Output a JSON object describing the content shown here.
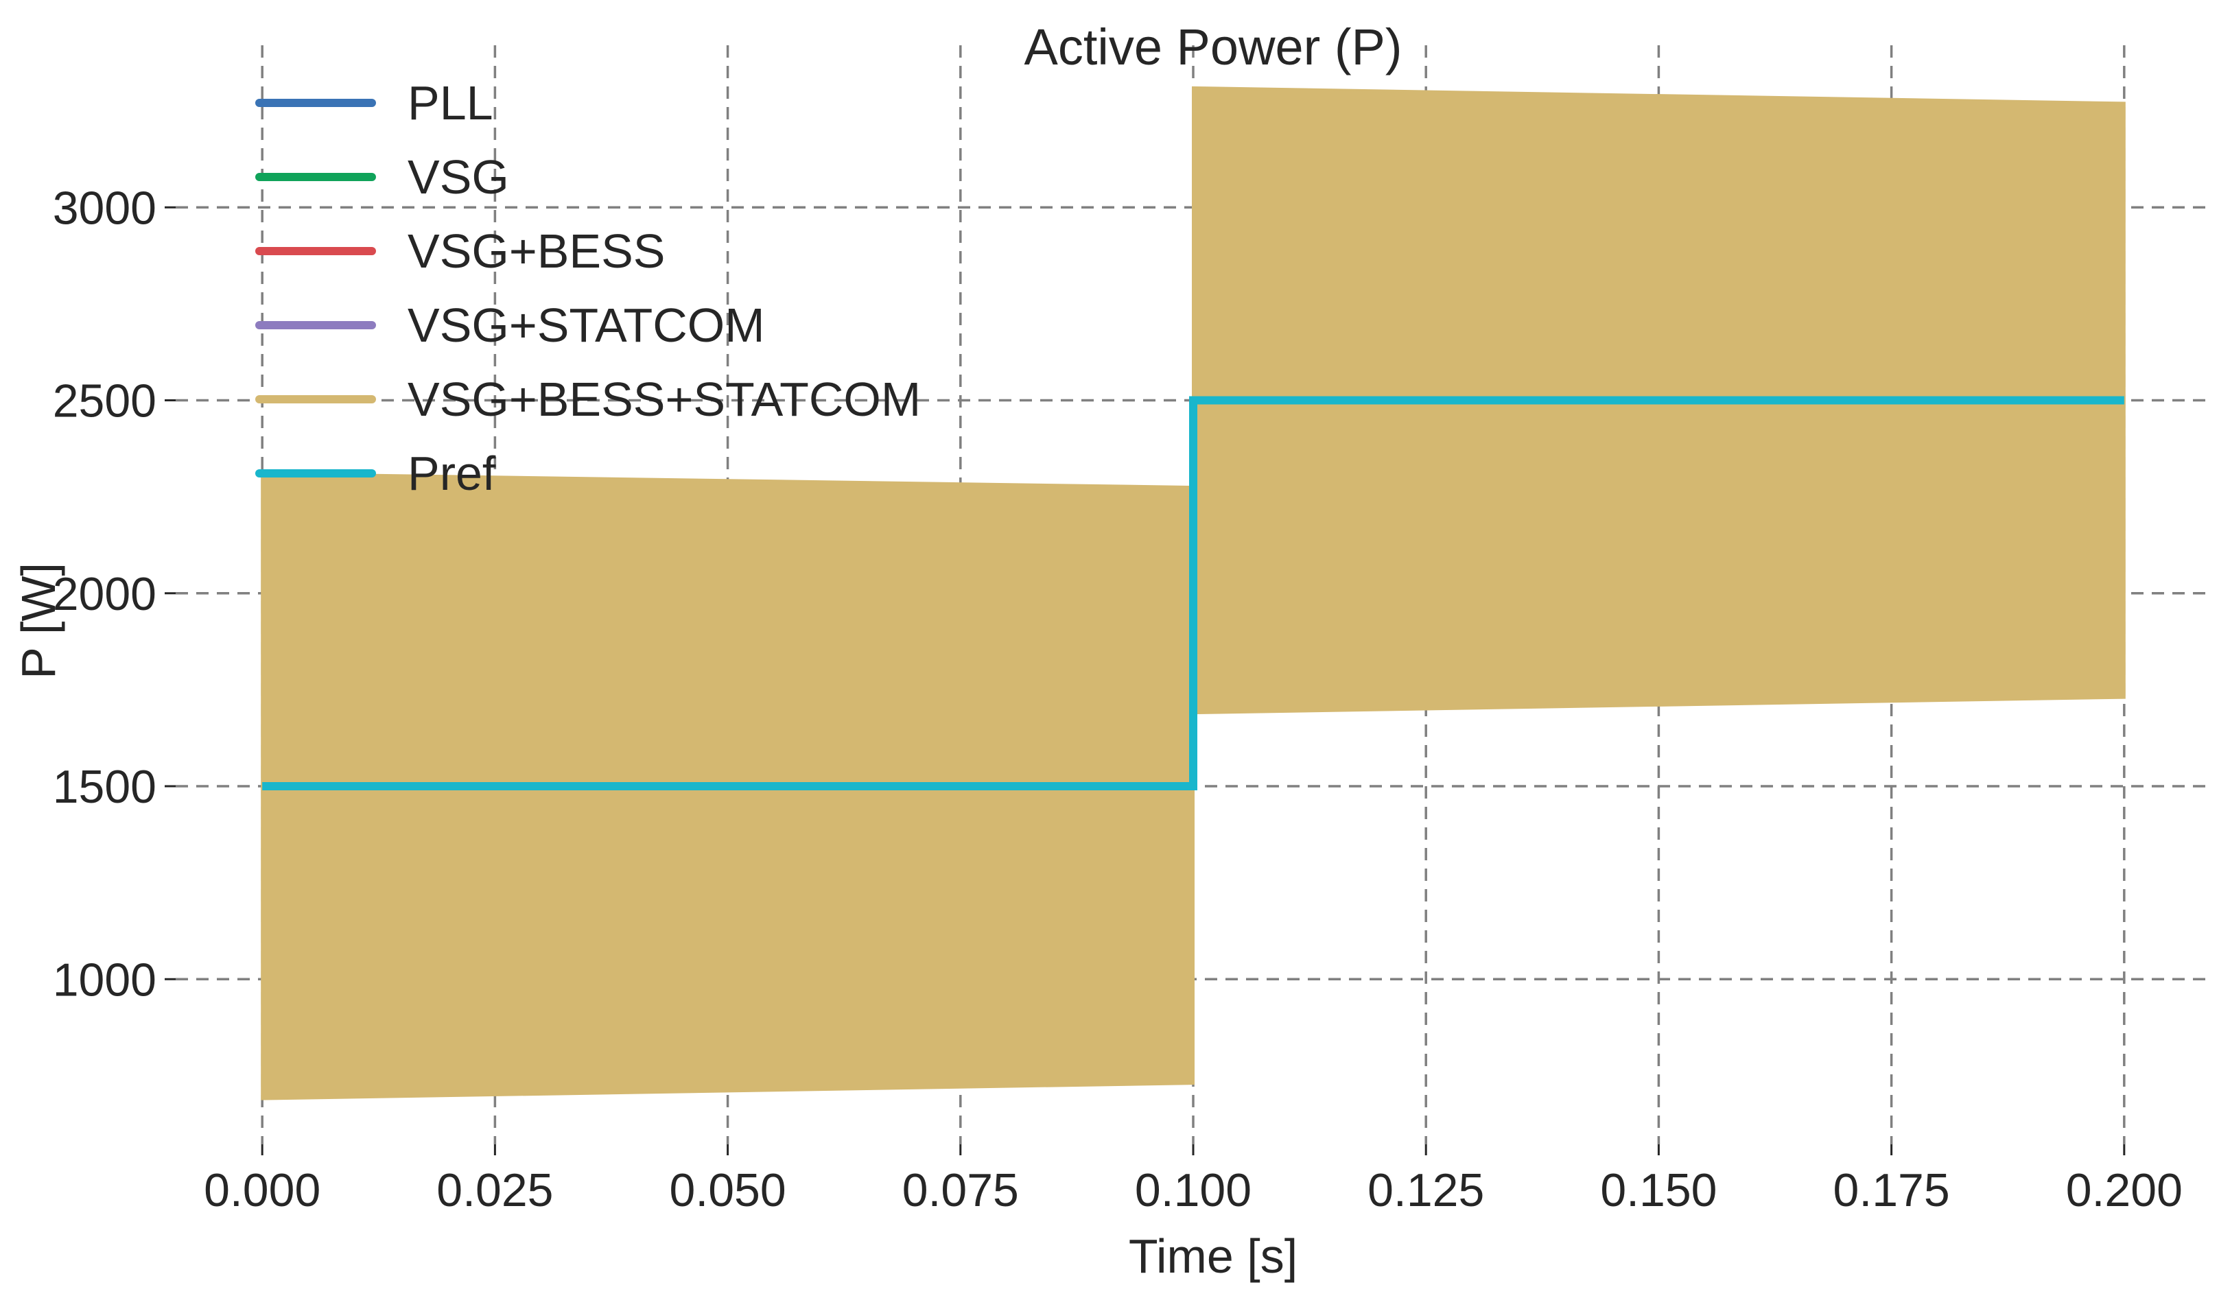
{
  "chart_data": {
    "type": "line",
    "title": "Active Power (P)",
    "xlabel": "Time [s]",
    "ylabel": "P [W]",
    "xlim": [
      -0.0093,
      0.2093
    ],
    "ylim": [
      572,
      3420
    ],
    "xticks": [
      0.0,
      0.025,
      0.05,
      0.075,
      0.1,
      0.125,
      0.15,
      0.175,
      0.2
    ],
    "xtick_labels": [
      "0.000",
      "0.025",
      "0.050",
      "0.075",
      "0.100",
      "0.125",
      "0.150",
      "0.175",
      "0.200"
    ],
    "yticks": [
      1000,
      1500,
      2000,
      2500,
      3000
    ],
    "ytick_labels": [
      "1000",
      "1500",
      "2000",
      "2500",
      "3000"
    ],
    "grid": true,
    "legend_position": "top-left",
    "series": [
      {
        "name": "PLL",
        "color": "#3a73b5",
        "style": "line",
        "points": []
      },
      {
        "name": "VSG",
        "color": "#10a35a",
        "style": "line",
        "points": []
      },
      {
        "name": "VSG+BESS",
        "color": "#d94a4f",
        "style": "line",
        "points": []
      },
      {
        "name": "VSG+STATCOM",
        "color": "#8d7cbf",
        "style": "line",
        "points": []
      },
      {
        "name": "VSG+BESS+STATCOM",
        "color": "#d4b871",
        "style": "band",
        "segments": [
          {
            "x": [
              0.0,
              0.1
            ],
            "upper": [
              2310,
              2275
            ],
            "lower": [
              690,
              730
            ]
          },
          {
            "x": [
              0.1,
              0.2
            ],
            "upper": [
              3310,
              3270
            ],
            "lower": [
              1690,
              1730
            ]
          }
        ]
      },
      {
        "name": "Pref",
        "color": "#19b6cc",
        "style": "line",
        "points": [
          [
            0.0,
            1500
          ],
          [
            0.1,
            1500
          ],
          [
            0.1,
            2500
          ],
          [
            0.2,
            2500
          ]
        ]
      }
    ]
  }
}
